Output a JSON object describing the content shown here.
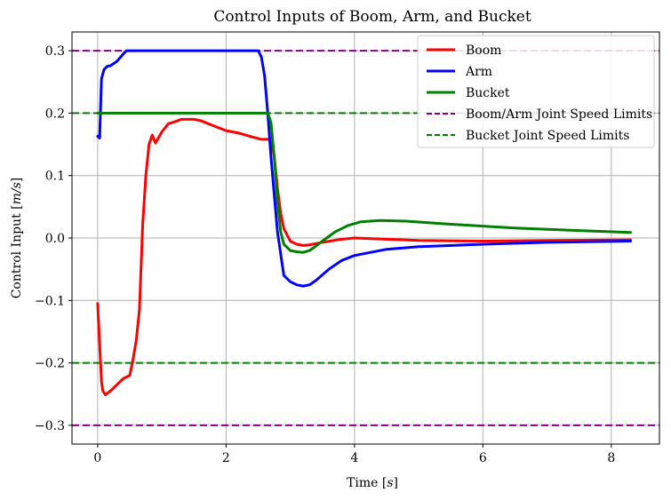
{
  "chart_data": {
    "type": "line",
    "title": "Control Inputs of Boom, Arm, and Bucket",
    "xlabel": "Time [s]",
    "ylabel": "Control Input [m/s]",
    "xlim": [
      -0.4,
      8.75
    ],
    "ylim": [
      -0.33,
      0.33
    ],
    "xticks": [
      0,
      2,
      4,
      6,
      8
    ],
    "yticks": [
      -0.3,
      -0.2,
      -0.1,
      0.0,
      0.1,
      0.2,
      0.3
    ],
    "xtick_labels": [
      "0",
      "2",
      "4",
      "6",
      "8"
    ],
    "ytick_labels": [
      "−0.3",
      "−0.2",
      "−0.1",
      "0.0",
      "0.1",
      "0.2",
      "0.3"
    ],
    "grid": true,
    "legend_position": "top-right",
    "series": [
      {
        "name": "Boom",
        "color": "#ff0000",
        "style": "solid",
        "x": [
          0.0,
          0.03,
          0.06,
          0.08,
          0.12,
          0.2,
          0.3,
          0.4,
          0.5,
          0.55,
          0.6,
          0.65,
          0.7,
          0.75,
          0.8,
          0.85,
          0.9,
          1.0,
          1.1,
          1.2,
          1.3,
          1.4,
          1.5,
          1.6,
          1.7,
          1.8,
          2.0,
          2.2,
          2.4,
          2.55,
          2.65,
          2.7,
          2.75,
          2.8,
          2.85,
          2.9,
          3.0,
          3.1,
          3.2,
          3.3,
          3.5,
          3.8,
          4.0,
          4.5,
          5.0,
          6.0,
          7.0,
          8.3
        ],
        "y": [
          -0.105,
          -0.17,
          -0.23,
          -0.245,
          -0.251,
          -0.245,
          -0.235,
          -0.225,
          -0.22,
          -0.195,
          -0.165,
          -0.115,
          0.02,
          0.1,
          0.15,
          0.165,
          0.152,
          0.17,
          0.183,
          0.186,
          0.19,
          0.19,
          0.19,
          0.188,
          0.184,
          0.18,
          0.172,
          0.168,
          0.162,
          0.158,
          0.158,
          0.16,
          0.13,
          0.08,
          0.04,
          0.015,
          -0.005,
          -0.01,
          -0.012,
          -0.011,
          -0.007,
          -0.002,
          0.0,
          -0.002,
          -0.004,
          -0.005,
          -0.004,
          -0.003
        ]
      },
      {
        "name": "Arm",
        "color": "#0000ff",
        "style": "solid",
        "x": [
          0.0,
          0.03,
          0.06,
          0.1,
          0.15,
          0.2,
          0.3,
          0.4,
          0.45,
          0.5,
          1.0,
          2.0,
          2.5,
          2.55,
          2.6,
          2.65,
          2.7,
          2.8,
          2.9,
          3.0,
          3.1,
          3.2,
          3.3,
          3.4,
          3.6,
          3.8,
          4.0,
          4.5,
          5.0,
          6.0,
          7.0,
          8.3
        ],
        "y": [
          0.163,
          0.16,
          0.255,
          0.27,
          0.275,
          0.276,
          0.283,
          0.295,
          0.3,
          0.3,
          0.3,
          0.3,
          0.3,
          0.29,
          0.26,
          0.2,
          0.13,
          0.01,
          -0.06,
          -0.07,
          -0.075,
          -0.077,
          -0.075,
          -0.068,
          -0.05,
          -0.036,
          -0.028,
          -0.018,
          -0.014,
          -0.01,
          -0.007,
          -0.005
        ]
      },
      {
        "name": "Bucket",
        "color": "#008000",
        "style": "solid",
        "x": [
          0.0,
          0.5,
          1.0,
          2.0,
          2.5,
          2.65,
          2.7,
          2.75,
          2.8,
          2.85,
          2.9,
          3.0,
          3.1,
          3.2,
          3.3,
          3.4,
          3.5,
          3.7,
          3.9,
          4.1,
          4.4,
          4.8,
          5.5,
          6.5,
          7.5,
          8.3
        ],
        "y": [
          0.2,
          0.2,
          0.2,
          0.2,
          0.2,
          0.2,
          0.185,
          0.13,
          0.06,
          0.01,
          -0.01,
          -0.02,
          -0.022,
          -0.023,
          -0.02,
          -0.013,
          -0.005,
          0.01,
          0.02,
          0.026,
          0.028,
          0.027,
          0.022,
          0.016,
          0.012,
          0.009
        ]
      },
      {
        "name": "Boom/Arm Joint Speed Limits",
        "color": "#800080",
        "style": "dashed",
        "hlines": [
          0.3,
          -0.3
        ]
      },
      {
        "name": "Bucket Joint Speed Limits",
        "color": "#008000",
        "style": "dashed",
        "hlines": [
          0.2,
          -0.2
        ]
      }
    ]
  }
}
